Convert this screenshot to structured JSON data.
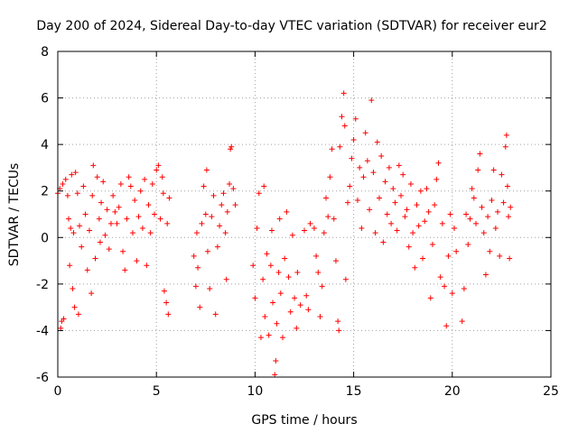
{
  "chart_data": {
    "type": "scatter",
    "title": "Day 200 of 2024, Sidereal Day-to-day VTEC variation (SDTVAR) for receiver eur2",
    "xlabel": "GPS time / hours",
    "ylabel": "SDTVAR / TECUs",
    "xlim": [
      0,
      25
    ],
    "ylim": [
      -6,
      8
    ],
    "xticks": [
      0,
      5,
      10,
      15,
      20,
      25
    ],
    "yticks": [
      -6,
      -4,
      -2,
      0,
      2,
      4,
      6,
      8
    ],
    "grid": true,
    "marker": "+",
    "color": "#ff0000",
    "series": [
      {
        "name": "SDTVAR",
        "points": [
          [
            0.0,
            1.9
          ],
          [
            0.1,
            2.1
          ],
          [
            0.15,
            -3.9
          ],
          [
            0.2,
            -3.6
          ],
          [
            0.25,
            2.3
          ],
          [
            0.3,
            -3.5
          ],
          [
            0.4,
            2.5
          ],
          [
            0.5,
            1.8
          ],
          [
            0.55,
            0.8
          ],
          [
            0.6,
            -1.2
          ],
          [
            0.65,
            0.4
          ],
          [
            0.7,
            2.7
          ],
          [
            0.75,
            -2.2
          ],
          [
            0.8,
            0.2
          ],
          [
            0.85,
            -3.0
          ],
          [
            0.9,
            2.8
          ],
          [
            1.0,
            1.9
          ],
          [
            1.05,
            -3.3
          ],
          [
            1.1,
            0.5
          ],
          [
            1.2,
            -0.4
          ],
          [
            1.3,
            2.2
          ],
          [
            1.4,
            1.0
          ],
          [
            1.5,
            -1.4
          ],
          [
            1.6,
            0.3
          ],
          [
            1.7,
            -2.4
          ],
          [
            1.75,
            1.8
          ],
          [
            1.8,
            3.1
          ],
          [
            1.9,
            -0.9
          ],
          [
            2.0,
            2.6
          ],
          [
            2.1,
            0.8
          ],
          [
            2.15,
            -0.2
          ],
          [
            2.2,
            1.5
          ],
          [
            2.3,
            2.4
          ],
          [
            2.4,
            0.1
          ],
          [
            2.5,
            1.2
          ],
          [
            2.6,
            -0.5
          ],
          [
            2.7,
            0.6
          ],
          [
            2.8,
            1.8
          ],
          [
            2.9,
            1.1
          ],
          [
            3.0,
            0.6
          ],
          [
            3.1,
            1.3
          ],
          [
            3.2,
            2.3
          ],
          [
            3.3,
            -0.6
          ],
          [
            3.4,
            -1.4
          ],
          [
            3.5,
            0.8
          ],
          [
            3.6,
            2.6
          ],
          [
            3.7,
            2.2
          ],
          [
            3.8,
            0.2
          ],
          [
            3.9,
            1.6
          ],
          [
            4.0,
            -1.0
          ],
          [
            4.1,
            0.9
          ],
          [
            4.2,
            2.0
          ],
          [
            4.3,
            0.4
          ],
          [
            4.4,
            2.5
          ],
          [
            4.5,
            -1.2
          ],
          [
            4.6,
            1.4
          ],
          [
            4.7,
            0.2
          ],
          [
            4.8,
            2.3
          ],
          [
            4.9,
            1.0
          ],
          [
            5.0,
            2.9
          ],
          [
            5.1,
            3.1
          ],
          [
            5.2,
            0.8
          ],
          [
            5.3,
            2.6
          ],
          [
            5.35,
            1.9
          ],
          [
            5.4,
            -2.3
          ],
          [
            5.5,
            -2.8
          ],
          [
            5.55,
            0.6
          ],
          [
            5.6,
            -3.3
          ],
          [
            5.65,
            1.7
          ],
          [
            6.9,
            -0.8
          ],
          [
            7.0,
            -2.1
          ],
          [
            7.05,
            0.2
          ],
          [
            7.1,
            -1.3
          ],
          [
            7.2,
            -3.0
          ],
          [
            7.3,
            0.6
          ],
          [
            7.4,
            2.2
          ],
          [
            7.5,
            1.0
          ],
          [
            7.55,
            2.9
          ],
          [
            7.6,
            -0.6
          ],
          [
            7.7,
            -2.2
          ],
          [
            7.8,
            0.9
          ],
          [
            7.9,
            1.8
          ],
          [
            8.0,
            -3.3
          ],
          [
            8.1,
            -0.4
          ],
          [
            8.2,
            0.5
          ],
          [
            8.3,
            1.4
          ],
          [
            8.4,
            1.9
          ],
          [
            8.5,
            0.2
          ],
          [
            8.55,
            -1.8
          ],
          [
            8.6,
            1.1
          ],
          [
            8.7,
            2.3
          ],
          [
            8.75,
            3.8
          ],
          [
            8.8,
            3.9
          ],
          [
            8.9,
            2.1
          ],
          [
            9.0,
            1.4
          ],
          [
            9.9,
            -1.2
          ],
          [
            10.0,
            -2.6
          ],
          [
            10.1,
            0.4
          ],
          [
            10.2,
            1.9
          ],
          [
            10.3,
            -4.3
          ],
          [
            10.4,
            -1.8
          ],
          [
            10.45,
            2.2
          ],
          [
            10.5,
            -3.4
          ],
          [
            10.6,
            -0.7
          ],
          [
            10.7,
            -4.2
          ],
          [
            10.8,
            -1.2
          ],
          [
            10.85,
            0.3
          ],
          [
            10.9,
            -2.8
          ],
          [
            11.0,
            -5.9
          ],
          [
            11.05,
            -5.3
          ],
          [
            11.1,
            -3.7
          ],
          [
            11.2,
            -1.5
          ],
          [
            11.25,
            0.8
          ],
          [
            11.3,
            -2.4
          ],
          [
            11.4,
            -4.3
          ],
          [
            11.5,
            -0.9
          ],
          [
            11.6,
            1.1
          ],
          [
            11.7,
            -1.7
          ],
          [
            11.8,
            -3.2
          ],
          [
            11.9,
            0.1
          ],
          [
            12.0,
            -2.6
          ],
          [
            12.1,
            -3.9
          ],
          [
            12.15,
            -1.5
          ],
          [
            12.3,
            -2.9
          ],
          [
            12.5,
            0.3
          ],
          [
            12.6,
            -2.5
          ],
          [
            12.7,
            -3.1
          ],
          [
            12.8,
            0.6
          ],
          [
            13.0,
            0.4
          ],
          [
            13.1,
            -0.8
          ],
          [
            13.2,
            -1.5
          ],
          [
            13.3,
            -3.4
          ],
          [
            13.4,
            -2.1
          ],
          [
            13.5,
            0.2
          ],
          [
            13.6,
            1.7
          ],
          [
            13.7,
            0.9
          ],
          [
            13.8,
            2.6
          ],
          [
            13.9,
            3.8
          ],
          [
            14.0,
            0.8
          ],
          [
            14.1,
            -1.0
          ],
          [
            14.2,
            -3.6
          ],
          [
            14.25,
            -4.0
          ],
          [
            14.3,
            3.9
          ],
          [
            14.4,
            5.2
          ],
          [
            14.5,
            6.2
          ],
          [
            14.55,
            4.8
          ],
          [
            14.6,
            -1.8
          ],
          [
            14.7,
            1.5
          ],
          [
            14.8,
            2.2
          ],
          [
            14.9,
            3.4
          ],
          [
            15.0,
            4.2
          ],
          [
            15.1,
            5.1
          ],
          [
            15.2,
            1.6
          ],
          [
            15.3,
            3.0
          ],
          [
            15.4,
            0.4
          ],
          [
            15.5,
            2.6
          ],
          [
            15.6,
            4.5
          ],
          [
            15.7,
            3.3
          ],
          [
            15.8,
            1.2
          ],
          [
            15.9,
            5.9
          ],
          [
            16.0,
            2.8
          ],
          [
            16.1,
            0.2
          ],
          [
            16.2,
            4.1
          ],
          [
            16.3,
            1.7
          ],
          [
            16.4,
            3.5
          ],
          [
            16.5,
            -0.2
          ],
          [
            16.6,
            2.4
          ],
          [
            16.7,
            1.0
          ],
          [
            16.8,
            3.0
          ],
          [
            16.9,
            0.6
          ],
          [
            17.0,
            2.1
          ],
          [
            17.1,
            1.5
          ],
          [
            17.2,
            0.3
          ],
          [
            17.3,
            3.1
          ],
          [
            17.4,
            1.8
          ],
          [
            17.5,
            2.7
          ],
          [
            17.6,
            0.9
          ],
          [
            17.7,
            1.2
          ],
          [
            17.8,
            -0.4
          ],
          [
            17.9,
            2.3
          ],
          [
            18.0,
            0.2
          ],
          [
            18.1,
            -1.3
          ],
          [
            18.2,
            1.4
          ],
          [
            18.3,
            0.5
          ],
          [
            18.4,
            2.0
          ],
          [
            18.5,
            -0.9
          ],
          [
            18.6,
            0.7
          ],
          [
            18.7,
            2.1
          ],
          [
            18.8,
            1.1
          ],
          [
            18.9,
            -2.6
          ],
          [
            19.0,
            -0.3
          ],
          [
            19.1,
            1.4
          ],
          [
            19.2,
            2.5
          ],
          [
            19.3,
            3.2
          ],
          [
            19.4,
            -1.7
          ],
          [
            19.5,
            0.6
          ],
          [
            19.6,
            -2.1
          ],
          [
            19.7,
            -3.8
          ],
          [
            19.8,
            -0.8
          ],
          [
            19.9,
            1.0
          ],
          [
            20.0,
            -2.4
          ],
          [
            20.1,
            0.4
          ],
          [
            20.2,
            -0.6
          ],
          [
            20.5,
            -3.6
          ],
          [
            20.6,
            -2.2
          ],
          [
            20.7,
            1.0
          ],
          [
            20.8,
            -0.3
          ],
          [
            20.9,
            0.8
          ],
          [
            21.0,
            2.1
          ],
          [
            21.1,
            1.7
          ],
          [
            21.2,
            0.6
          ],
          [
            21.3,
            2.9
          ],
          [
            21.4,
            3.6
          ],
          [
            21.5,
            1.3
          ],
          [
            21.6,
            0.2
          ],
          [
            21.7,
            -1.6
          ],
          [
            21.8,
            0.9
          ],
          [
            21.9,
            -0.6
          ],
          [
            22.0,
            1.6
          ],
          [
            22.1,
            2.9
          ],
          [
            22.2,
            0.4
          ],
          [
            22.3,
            1.1
          ],
          [
            22.4,
            -0.8
          ],
          [
            22.5,
            2.7
          ],
          [
            22.6,
            1.5
          ],
          [
            22.7,
            3.9
          ],
          [
            22.75,
            4.4
          ],
          [
            22.8,
            2.2
          ],
          [
            22.85,
            0.9
          ],
          [
            22.9,
            -0.9
          ],
          [
            22.95,
            1.3
          ]
        ]
      }
    ]
  }
}
